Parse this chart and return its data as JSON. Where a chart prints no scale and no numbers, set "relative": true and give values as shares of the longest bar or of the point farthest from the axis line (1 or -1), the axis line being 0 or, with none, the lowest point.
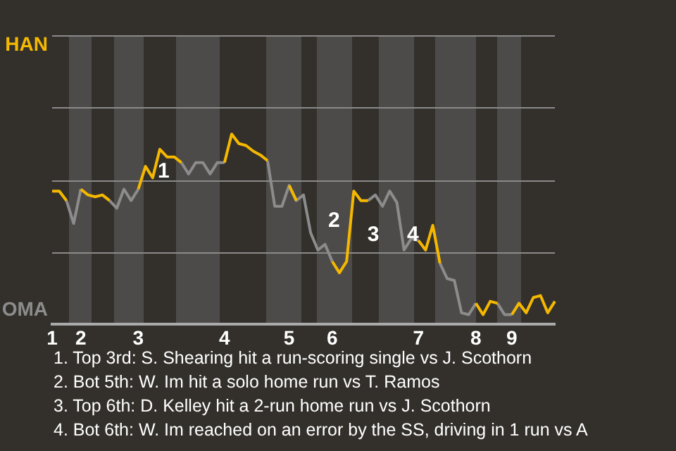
{
  "chart_data": {
    "type": "line",
    "relative": true,
    "categories": [
      "1",
      null,
      null,
      null,
      "2",
      null,
      null,
      null,
      null,
      null,
      null,
      null,
      "3",
      null,
      null,
      null,
      null,
      null,
      null,
      null,
      null,
      null,
      null,
      null,
      "4",
      null,
      null,
      null,
      null,
      null,
      null,
      null,
      null,
      "5",
      null,
      null,
      null,
      null,
      null,
      "6",
      null,
      null,
      null,
      null,
      null,
      null,
      null,
      null,
      null,
      null,
      null,
      "7",
      null,
      null,
      null,
      null,
      null,
      null,
      null,
      "8",
      null,
      null,
      null,
      null,
      "9",
      null,
      null,
      null,
      null,
      null,
      null
    ],
    "series": [
      {
        "color": "#f5b800",
        "values": [
          0.7,
          0.7,
          0.65,
          null,
          0.71,
          0.68,
          0.67,
          0.68,
          0.65,
          null,
          null,
          null,
          0.71,
          0.83,
          0.77,
          0.92,
          0.88,
          0.88,
          0.85,
          null,
          null,
          null,
          null,
          null,
          0.85,
          1.0,
          0.95,
          0.94,
          0.91,
          0.89,
          0.86,
          null,
          null,
          0.73,
          0.65,
          null,
          null,
          null,
          null,
          0.33,
          0.27,
          0.33,
          0.7,
          0.65,
          0.65,
          null,
          null,
          null,
          null,
          null,
          null,
          0.44,
          0.39,
          0.52,
          0.32,
          null,
          null,
          null,
          null,
          0.11,
          0.05,
          0.12,
          0.11,
          null,
          0.05,
          0.11,
          0.06,
          0.14,
          0.15,
          0.06,
          0.12
        ]
      },
      {
        "color": "#8c8c8c",
        "values": [
          null,
          null,
          0.65,
          0.53,
          0.71,
          null,
          null,
          null,
          0.65,
          0.61,
          0.71,
          0.65,
          0.71,
          null,
          null,
          null,
          null,
          null,
          0.85,
          0.79,
          0.85,
          0.85,
          0.79,
          0.85,
          0.85,
          null,
          null,
          null,
          null,
          null,
          0.86,
          0.62,
          0.62,
          0.73,
          0.65,
          0.68,
          0.48,
          0.39,
          0.42,
          0.33,
          null,
          null,
          null,
          null,
          0.65,
          0.68,
          0.62,
          0.7,
          0.64,
          0.39,
          0.45,
          0.44,
          null,
          null,
          0.32,
          0.24,
          0.23,
          0.06,
          0.05,
          0.11,
          null,
          null,
          0.11,
          0.05,
          0.05,
          null,
          null,
          null,
          null,
          null,
          null
        ]
      }
    ],
    "ref_lines": [
      {
        "axis": "y",
        "value": 0.38,
        "color": "#8a8a8a"
      },
      {
        "axis": "y",
        "value": 0.76,
        "color": "#8a8a8a"
      },
      {
        "axis": "y",
        "value": 1.14,
        "color": "#8a8a8a"
      },
      {
        "axis": "y",
        "value": 1.52,
        "color": "#8a8a8a"
      }
    ],
    "annotations": [
      "HAN",
      "OMA",
      "1",
      "2",
      "3",
      "4",
      "1. Top 3rd: S. Shearing hit a run-scoring single vs J. Scothorn",
      "2. Bot 5th: W. Im hit a solo home run vs T. Ramos",
      "3. Top 6th: D. Kelley hit a 2-run home run vs J. Scothorn",
      "4. Bot 6th: W. Im reached on an error by the SS, driving in 1 run vs A"
    ]
  }
}
